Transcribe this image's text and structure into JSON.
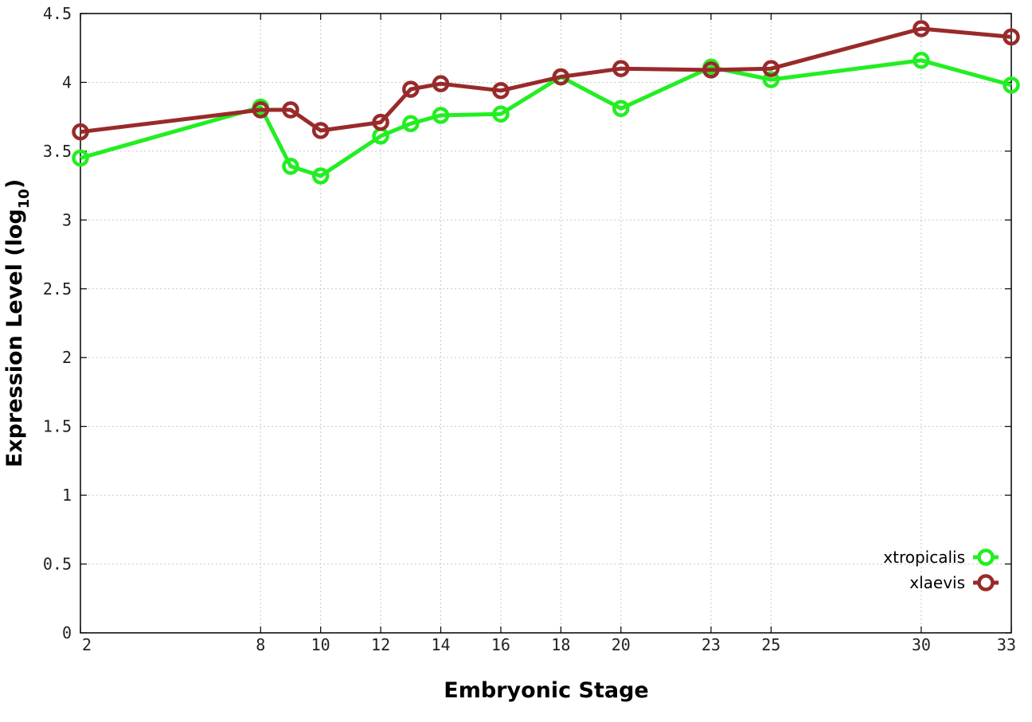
{
  "chart_data": {
    "type": "line",
    "xlabel": "Embryonic Stage",
    "ylabel_main": "Expression Level (log",
    "ylabel_sub": "10",
    "ylabel_close": ")",
    "ylim": [
      0,
      4.5
    ],
    "y_ticks": [
      "0",
      "0.5",
      "1",
      "1.5",
      "2",
      "2.5",
      "3",
      "3.5",
      "4",
      "4.5"
    ],
    "x": [
      2,
      8,
      9,
      10,
      12,
      13,
      14,
      16,
      18,
      20,
      23,
      25,
      30,
      33
    ],
    "x_ticks": [
      "2",
      "8",
      "10",
      "12",
      "14",
      "16",
      "18",
      "20",
      "23",
      "25",
      "30",
      "33"
    ],
    "grid": true,
    "legend_position": "bottom-right",
    "series": [
      {
        "name": "xtropicalis",
        "color": "#22ee22",
        "values": [
          3.45,
          3.82,
          3.39,
          3.32,
          3.61,
          3.7,
          3.76,
          3.77,
          4.04,
          3.81,
          4.11,
          4.02,
          4.16,
          3.98
        ]
      },
      {
        "name": "xlaevis",
        "color": "#992a2a",
        "values": [
          3.64,
          3.8,
          3.8,
          3.65,
          3.71,
          3.95,
          3.99,
          3.94,
          4.04,
          4.1,
          4.09,
          4.1,
          4.39,
          4.33
        ]
      }
    ]
  }
}
